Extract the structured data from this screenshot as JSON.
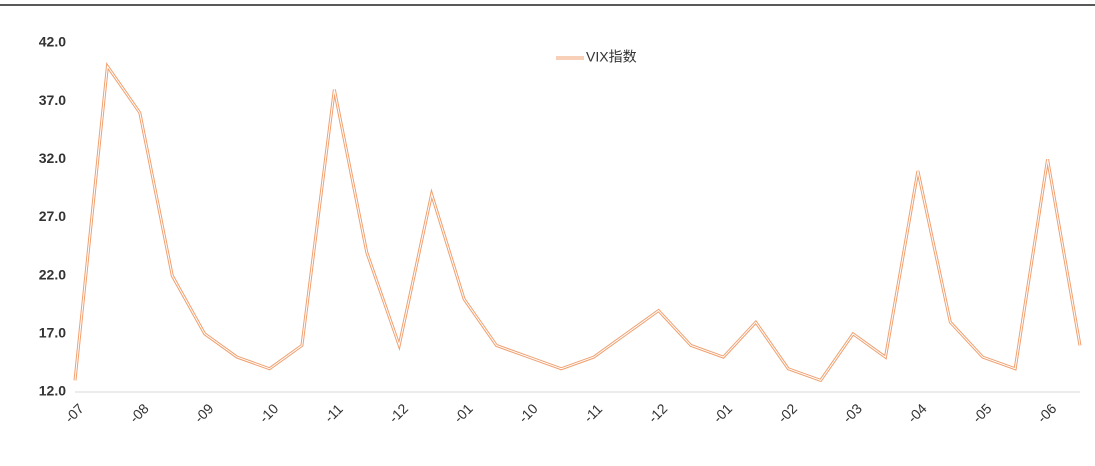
{
  "chart_data": {
    "type": "line",
    "categories": [
      "-07",
      null,
      "-08",
      null,
      "-09",
      null,
      "-10",
      null,
      "-11",
      null,
      "-12",
      null,
      "-01",
      null,
      "-10",
      null,
      "-11",
      null,
      "-12",
      null,
      "-01",
      null,
      "-02",
      null,
      "-03",
      null,
      "-04",
      null,
      "-05",
      null,
      "-06",
      null
    ],
    "series": [
      {
        "name": "VIX指数",
        "color": "#f0a070",
        "values": [
          13,
          40,
          36,
          22,
          17,
          15,
          14,
          16,
          38,
          24,
          16,
          29,
          20,
          16,
          15,
          14,
          15,
          17,
          19,
          16,
          15,
          18,
          14,
          13,
          17,
          15,
          31,
          18,
          15,
          14,
          32,
          16
        ]
      }
    ],
    "ylim": [
      12,
      42
    ],
    "yticks": [
      {
        "value": 12,
        "label": "12.0"
      },
      {
        "value": 17,
        "label": "17.0"
      },
      {
        "value": 22,
        "label": "22.0"
      },
      {
        "value": 27,
        "label": "27.0"
      },
      {
        "value": 32,
        "label": "32.0"
      },
      {
        "value": 37,
        "label": "37.0"
      },
      {
        "value": 42,
        "label": "42.0"
      }
    ],
    "grid": false,
    "legend": "top"
  }
}
